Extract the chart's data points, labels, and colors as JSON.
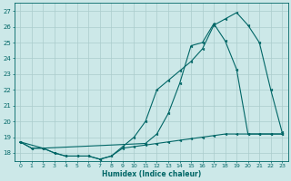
{
  "xlabel": "Humidex (Indice chaleur)",
  "bg_color": "#cce8e8",
  "grid_color": "#aacccc",
  "line_color": "#006666",
  "xlim": [
    -0.5,
    23.5
  ],
  "ylim": [
    17.5,
    27.5
  ],
  "yticks": [
    18,
    19,
    20,
    21,
    22,
    23,
    24,
    25,
    26,
    27
  ],
  "xticks": [
    0,
    1,
    2,
    3,
    4,
    5,
    6,
    7,
    8,
    9,
    10,
    11,
    12,
    13,
    14,
    15,
    16,
    17,
    18,
    19,
    20,
    21,
    22,
    23
  ],
  "line1_x": [
    0,
    1,
    2,
    3,
    4,
    5,
    6,
    7,
    8,
    9,
    10,
    11,
    12,
    13,
    14,
    15,
    16,
    17,
    18,
    19,
    20,
    21,
    22,
    23
  ],
  "line1_y": [
    18.7,
    18.3,
    18.3,
    18.0,
    17.8,
    17.8,
    17.8,
    17.6,
    17.8,
    18.4,
    19.0,
    20.0,
    22.0,
    22.6,
    23.2,
    23.8,
    24.6,
    26.1,
    26.5,
    26.9,
    26.1,
    25.0,
    22.0,
    19.3
  ],
  "line2_x": [
    0,
    1,
    2,
    3,
    4,
    5,
    6,
    7,
    8,
    9,
    10,
    11,
    12,
    13,
    14,
    15,
    16,
    17,
    18,
    19,
    20,
    21,
    22,
    23
  ],
  "line2_y": [
    18.7,
    18.3,
    18.3,
    18.0,
    17.8,
    17.8,
    17.8,
    17.6,
    17.8,
    18.3,
    18.4,
    18.5,
    18.6,
    18.7,
    18.8,
    18.9,
    19.0,
    19.1,
    19.2,
    19.2,
    19.2,
    19.2,
    19.2,
    19.2
  ],
  "line3_x": [
    0,
    2,
    11,
    12,
    13,
    14,
    15,
    16,
    17,
    18,
    19,
    20,
    21,
    22,
    23
  ],
  "line3_y": [
    18.7,
    18.3,
    18.6,
    19.2,
    20.5,
    22.4,
    24.8,
    25.0,
    26.2,
    25.1,
    23.3,
    19.2,
    19.2,
    19.2,
    19.2
  ]
}
